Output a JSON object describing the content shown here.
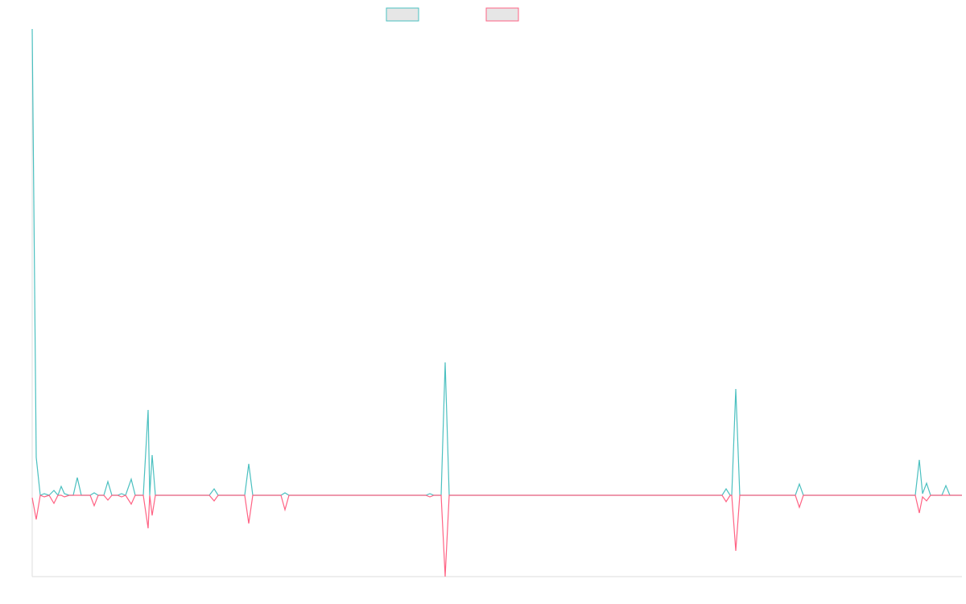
{
  "chart_data": {
    "type": "line",
    "x": [
      0,
      5,
      10,
      15,
      21,
      27,
      32,
      36,
      40,
      46,
      51,
      56,
      61,
      72,
      77,
      82,
      89,
      94,
      99,
      106,
      111,
      116,
      123,
      128,
      138,
      144,
      146,
      149,
      153,
      220,
      226,
      231,
      264,
      269,
      274,
      309,
      314,
      319,
      489,
      494,
      499,
      508,
      513,
      518,
      857,
      862,
      867,
      869,
      874,
      879,
      948,
      953,
      958,
      1097,
      1102,
      1106,
      1111,
      1116,
      1130,
      1135,
      1140,
      1155
    ],
    "series": [
      {
        "color": "#4bc0c0",
        "values": [
          579,
          47,
          0,
          2,
          0,
          6,
          0,
          11,
          2,
          0,
          0,
          22,
          0,
          0,
          3,
          0,
          0,
          17,
          0,
          0,
          2,
          0,
          20,
          0,
          0,
          106,
          0,
          50,
          0,
          0,
          8,
          0,
          0,
          39,
          0,
          0,
          3,
          0,
          0,
          2,
          0,
          0,
          165,
          0,
          0,
          8,
          0,
          0,
          132,
          0,
          0,
          14,
          0,
          0,
          44,
          2,
          15,
          0,
          0,
          12,
          0,
          0
        ]
      },
      {
        "color": "#ff6384",
        "values": [
          -3,
          -30,
          0,
          -2,
          0,
          -10,
          0,
          0,
          -2,
          0,
          0,
          0,
          0,
          0,
          -13,
          0,
          0,
          -6,
          0,
          0,
          -2,
          0,
          -11,
          0,
          0,
          -41,
          0,
          -25,
          0,
          0,
          -7,
          0,
          0,
          -35,
          0,
          0,
          -18,
          0,
          0,
          -2,
          0,
          0,
          -101,
          0,
          0,
          -8,
          0,
          0,
          -69,
          0,
          0,
          -15,
          0,
          0,
          -22,
          -2,
          -7,
          0,
          0,
          0,
          0,
          0
        ]
      }
    ],
    "xlim": [
      0,
      1155
    ],
    "ylim": [
      -101,
      579
    ]
  }
}
